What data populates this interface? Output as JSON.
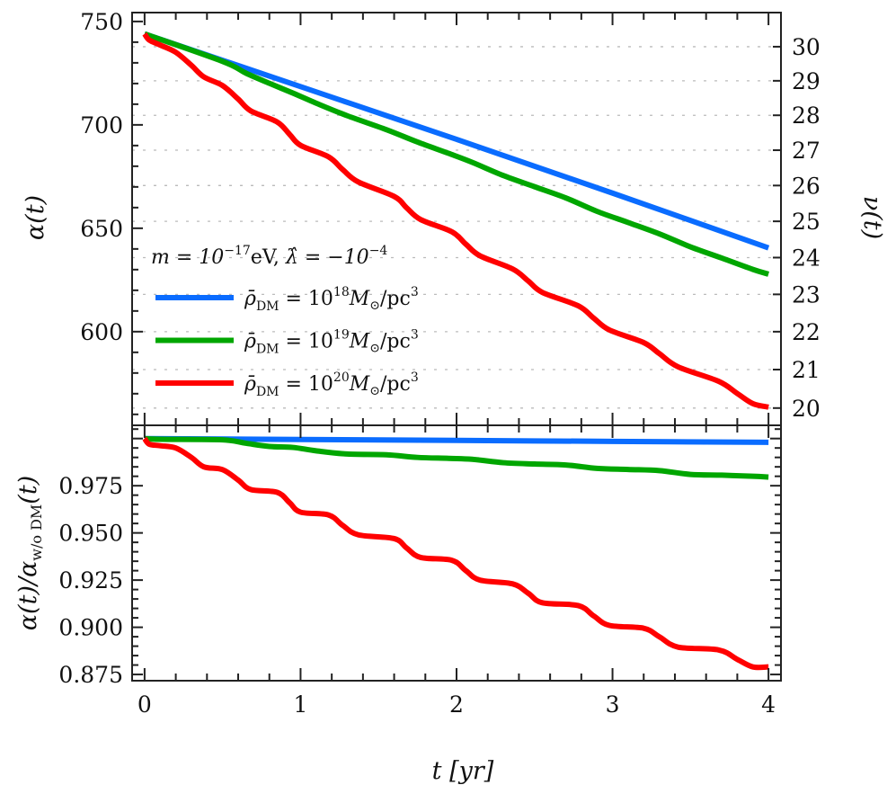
{
  "chart_data": [
    {
      "panel": "top",
      "type": "line",
      "xlabel": "t [yr]",
      "ylabel": "α(t)",
      "ylabel_right": "ν(t)",
      "xlim": [
        -0.08,
        4.08
      ],
      "ylim": [
        554.7,
        754.3
      ],
      "x_ticks": [
        0,
        1,
        2,
        3,
        4
      ],
      "y_ticks": [
        600,
        650,
        700,
        750
      ],
      "y_ticks_right": [
        20,
        21,
        22,
        23,
        24,
        25,
        26,
        27,
        28,
        29,
        30
      ],
      "grid": "dashed horizontal lines at right-axis ticks",
      "legend": {
        "placement": "center-left",
        "header": {
          "m_prefix": "m = 10",
          "m_exp": "−17",
          "m_unit": "eV, ",
          "lam_prefix": "λ̂ = −10",
          "lam_exp": "−4"
        },
        "entries": [
          {
            "prefix": "ρ̄",
            "sub": "DM",
            "mid": " = 10",
            "sup": "18",
            "suffix": "M",
            "sun": "⊙",
            "unit": "/pc",
            "unit_sup": "3",
            "color": "#0a6cff"
          },
          {
            "prefix": "ρ̄",
            "sub": "DM",
            "mid": " = 10",
            "sup": "19",
            "suffix": "M",
            "sun": "⊙",
            "unit": "/pc",
            "unit_sup": "3",
            "color": "#00a600"
          },
          {
            "prefix": "ρ̄",
            "sub": "DM",
            "mid": " = 10",
            "sup": "20",
            "suffix": "M",
            "sun": "⊙",
            "unit": "/pc",
            "unit_sup": "3",
            "color": "#ff0000"
          }
        ]
      },
      "series": [
        {
          "name": "ρ̄DM = 10^18 M⊙/pc^3",
          "color": "#0a6cff",
          "x": [
            0,
            1,
            2,
            3,
            4
          ],
          "y": [
            744,
            718.5,
            693,
            667,
            640.5
          ]
        },
        {
          "name": "ρ̄DM = 10^19 M⊙/pc^3",
          "color": "#00a600",
          "x": [
            0,
            0.5,
            0.65,
            0.8,
            0.95,
            1.1,
            1.3,
            1.55,
            1.75,
            1.95,
            2.1,
            2.3,
            2.5,
            2.7,
            2.9,
            3.1,
            3.3,
            3.5,
            3.7,
            3.9,
            4.0
          ],
          "y": [
            744,
            730.7,
            725.0,
            720.1,
            715.4,
            710.5,
            704.4,
            697.7,
            691.7,
            686.2,
            681.9,
            675.5,
            670.1,
            664.7,
            658.2,
            652.8,
            647.3,
            641.0,
            635.6,
            630.1,
            627.8
          ]
        },
        {
          "name": "ρ̄DM = 10^20 M⊙/pc^3",
          "color": "#ff0000",
          "x": [
            0,
            0.03,
            0.1,
            0.2,
            0.3,
            0.38,
            0.5,
            0.6,
            0.68,
            0.85,
            0.93,
            1.0,
            1.18,
            1.27,
            1.37,
            1.6,
            1.68,
            1.77,
            1.97,
            2.06,
            2.15,
            2.36,
            2.46,
            2.55,
            2.78,
            2.88,
            2.98,
            3.2,
            3.3,
            3.42,
            3.68,
            3.8,
            3.9,
            4.0
          ],
          "y": [
            744,
            741.0,
            738.6,
            735.1,
            728.8,
            723.2,
            719.0,
            712.5,
            706.8,
            701.4,
            695.4,
            690.1,
            684.5,
            678.4,
            672.4,
            665.4,
            659.9,
            654.2,
            648.3,
            642.3,
            636.7,
            630.3,
            624.5,
            619.0,
            612.5,
            606.5,
            600.8,
            594.7,
            589.4,
            583.0,
            576.0,
            570.1,
            565.2,
            563.5
          ]
        }
      ]
    },
    {
      "panel": "bottom",
      "type": "line",
      "xlabel": "t [yr]",
      "ylabel": "α(t)/α_w/o DM(t)",
      "ylabel_parts": {
        "main": "α(t)/α",
        "sub": "w/o DM",
        "tail": "(t)"
      },
      "xlim": [
        -0.08,
        4.08
      ],
      "ylim": [
        0.8717,
        1.007
      ],
      "x_ticks": [
        0,
        1,
        2,
        3,
        4
      ],
      "y_ticks": [
        0.875,
        0.9,
        0.925,
        0.95,
        0.975
      ],
      "y_tick_labels": [
        "0.875",
        "0.900",
        "0.925",
        "0.950",
        "0.975"
      ],
      "series": [
        {
          "name": "ρ̄DM = 10^18 M⊙/pc^3",
          "color": "#0a6cff",
          "x": [
            0,
            1,
            2,
            3,
            4
          ],
          "y": [
            1.0,
            0.9995,
            0.999,
            0.9985,
            0.998
          ]
        },
        {
          "name": "ρ̄DM = 10^19 M⊙/pc^3",
          "color": "#00a600",
          "x": [
            0,
            0.1,
            0.5,
            0.65,
            0.8,
            0.95,
            1.1,
            1.3,
            1.55,
            1.75,
            1.95,
            2.1,
            2.3,
            2.5,
            2.7,
            2.9,
            3.1,
            3.3,
            3.5,
            3.7,
            3.9,
            4.0
          ],
          "y": [
            1.0,
            0.9996,
            0.9993,
            0.9975,
            0.9958,
            0.9953,
            0.9935,
            0.9918,
            0.9914,
            0.99,
            0.9895,
            0.989,
            0.9872,
            0.9865,
            0.986,
            0.9842,
            0.9836,
            0.983,
            0.981,
            0.9806,
            0.98,
            0.9796
          ]
        },
        {
          "name": "ρ̄DM = 10^20 M⊙/pc^3",
          "color": "#ff0000",
          "x": [
            0,
            0.03,
            0.1,
            0.2,
            0.3,
            0.38,
            0.5,
            0.6,
            0.68,
            0.85,
            0.93,
            1.0,
            1.18,
            1.27,
            1.37,
            1.6,
            1.68,
            1.77,
            1.97,
            2.06,
            2.15,
            2.36,
            2.46,
            2.55,
            2.78,
            2.88,
            2.98,
            3.2,
            3.3,
            3.42,
            3.68,
            3.8,
            3.9,
            4.0
          ],
          "y": [
            1.0,
            0.997,
            0.9962,
            0.995,
            0.99,
            0.985,
            0.9835,
            0.978,
            0.973,
            0.9715,
            0.966,
            0.961,
            0.9595,
            0.954,
            0.949,
            0.947,
            0.942,
            0.937,
            0.9355,
            0.93,
            0.925,
            0.923,
            0.918,
            0.913,
            0.9115,
            0.906,
            0.901,
            0.8995,
            0.895,
            0.8895,
            0.888,
            0.883,
            0.879,
            0.879
          ]
        }
      ]
    }
  ]
}
